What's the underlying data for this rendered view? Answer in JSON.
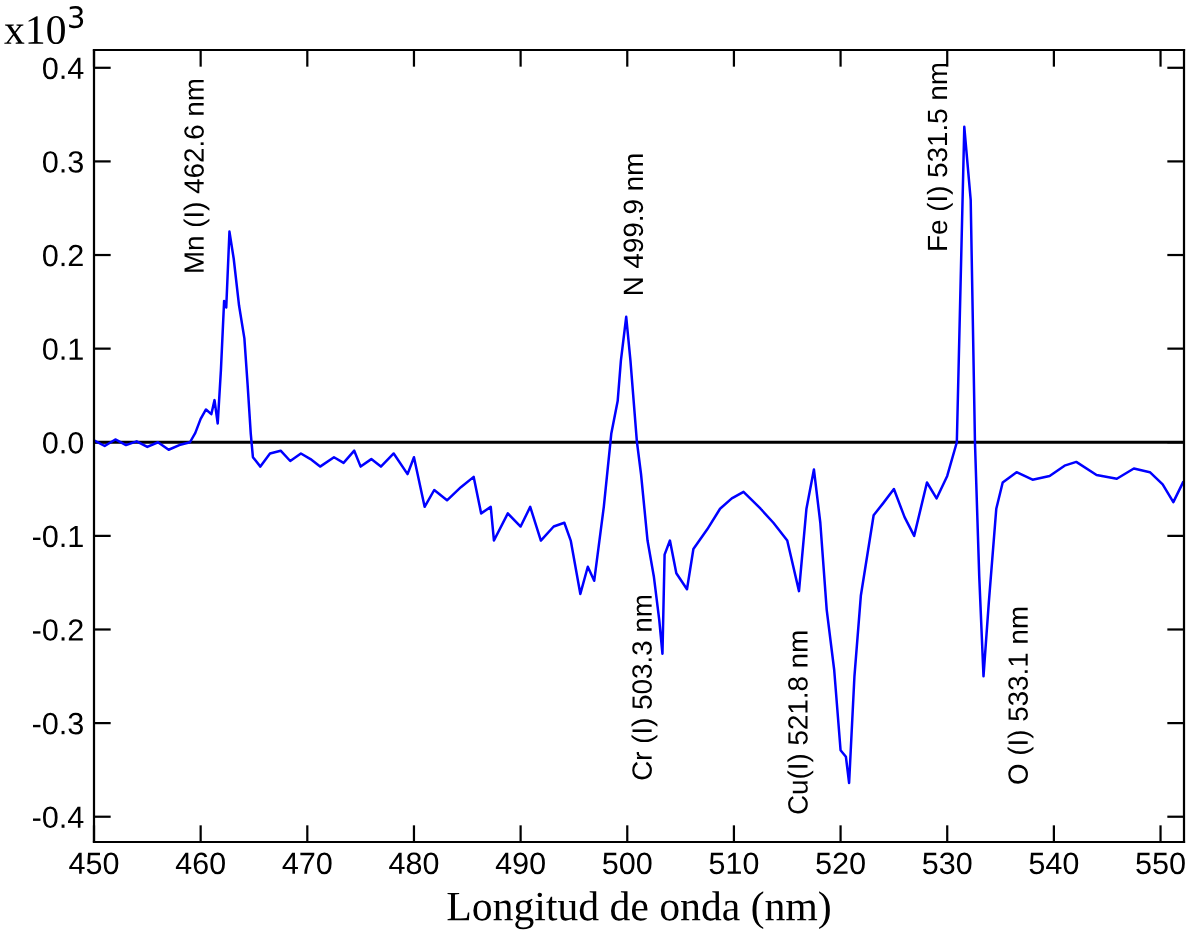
{
  "chart_data": {
    "type": "line",
    "xlabel": "Longitud de onda (nm)",
    "ylabel": "x10$^{3}$",
    "x": [
      450,
      451,
      452,
      453,
      454,
      455,
      456,
      457,
      458,
      459,
      459.5,
      460,
      460.5,
      461,
      461.3,
      461.6,
      461.9,
      462.2,
      462.4,
      462.7,
      463.1,
      463.6,
      464.1,
      464.4,
      464.7,
      464.9,
      465.6,
      466.5,
      467.5,
      468.4,
      469.4,
      470.3,
      471.2,
      472.5,
      473.4,
      474.4,
      475,
      476,
      476.9,
      478.1,
      479.4,
      480,
      481,
      481.9,
      483.1,
      484.4,
      485.6,
      486.3,
      487.2,
      487.5,
      488.8,
      490,
      490.9,
      491.9,
      493.1,
      494.1,
      494.7,
      495.6,
      496.3,
      496.9,
      497.8,
      498.5,
      499.1,
      499.4,
      499.9,
      500.3,
      500.9,
      501.3,
      501.9,
      502.5,
      503,
      503.3,
      503.5,
      504,
      504.6,
      505.6,
      506.2,
      507.5,
      508.7,
      509.8,
      510.9,
      512.5,
      513.7,
      515,
      516.1,
      516.8,
      517.5,
      518.1,
      518.7,
      519.4,
      520,
      520.5,
      520.8,
      521.3,
      521.9,
      523.1,
      524,
      525,
      526,
      526.9,
      528.1,
      529,
      530,
      530.9,
      531.6,
      532.2,
      532.6,
      533,
      533.4,
      533.9,
      534.6,
      535.2,
      536.5,
      538,
      539.6,
      541,
      542.1,
      544,
      545.9,
      547.5,
      549,
      550.2,
      551.2,
      552.1
    ],
    "series": [
      {
        "color": "#0000ff",
        "values": [
          0.002,
          -0.004,
          0.003,
          -0.003,
          0.001,
          -0.005,
          0.0,
          -0.008,
          -0.003,
          0.0,
          0.01,
          0.025,
          0.035,
          0.03,
          0.045,
          0.02,
          0.077,
          0.151,
          0.144,
          0.225,
          0.196,
          0.146,
          0.111,
          0.062,
          0.009,
          -0.016,
          -0.026,
          -0.012,
          -0.009,
          -0.02,
          -0.012,
          -0.018,
          -0.026,
          -0.016,
          -0.022,
          -0.009,
          -0.026,
          -0.018,
          -0.026,
          -0.012,
          -0.034,
          -0.016,
          -0.069,
          -0.051,
          -0.062,
          -0.048,
          -0.037,
          -0.076,
          -0.069,
          -0.105,
          -0.076,
          -0.09,
          -0.069,
          -0.105,
          -0.09,
          -0.086,
          -0.105,
          -0.162,
          -0.133,
          -0.148,
          -0.069,
          0.009,
          0.044,
          0.087,
          0.134,
          0.087,
          0.001,
          -0.035,
          -0.105,
          -0.144,
          -0.19,
          -0.226,
          -0.12,
          -0.105,
          -0.14,
          -0.157,
          -0.114,
          -0.093,
          -0.071,
          -0.06,
          -0.053,
          -0.071,
          -0.086,
          -0.105,
          -0.159,
          -0.071,
          -0.029,
          -0.086,
          -0.179,
          -0.243,
          -0.329,
          -0.336,
          -0.364,
          -0.25,
          -0.164,
          -0.078,
          -0.065,
          -0.05,
          -0.08,
          -0.1,
          -0.043,
          -0.06,
          -0.036,
          0.0,
          0.337,
          0.259,
          0.0,
          -0.143,
          -0.25,
          -0.171,
          -0.071,
          -0.043,
          -0.032,
          -0.04,
          -0.036,
          -0.025,
          -0.021,
          -0.035,
          -0.039,
          -0.028,
          -0.032,
          -0.045,
          -0.064,
          -0.043
        ]
      }
    ],
    "xlim": [
      450,
      552.2
    ],
    "xticks": [
      450,
      460,
      470,
      480,
      490,
      500,
      510,
      520,
      530,
      540,
      550
    ],
    "ylim": [
      -0.427,
      0.419
    ],
    "yticks": [
      -0.4,
      -0.3,
      -0.2,
      -0.1,
      {
        "value": 0,
        "label": "0.0"
      },
      0.1,
      0.2,
      0.3,
      0.4
    ],
    "ref_lines": [
      {
        "axis": "y",
        "value": 0,
        "color": "#000000"
      }
    ],
    "annotations": [
      "Mn (I) 462.6 nm",
      "N 499.9 nm",
      "Fe (I) 531.5 nm",
      "Cr (I) 503.3 nm",
      "Cu(I) 521.8 nm",
      "O (I) 533.1 nm"
    ],
    "grid": false,
    "legend": false
  }
}
